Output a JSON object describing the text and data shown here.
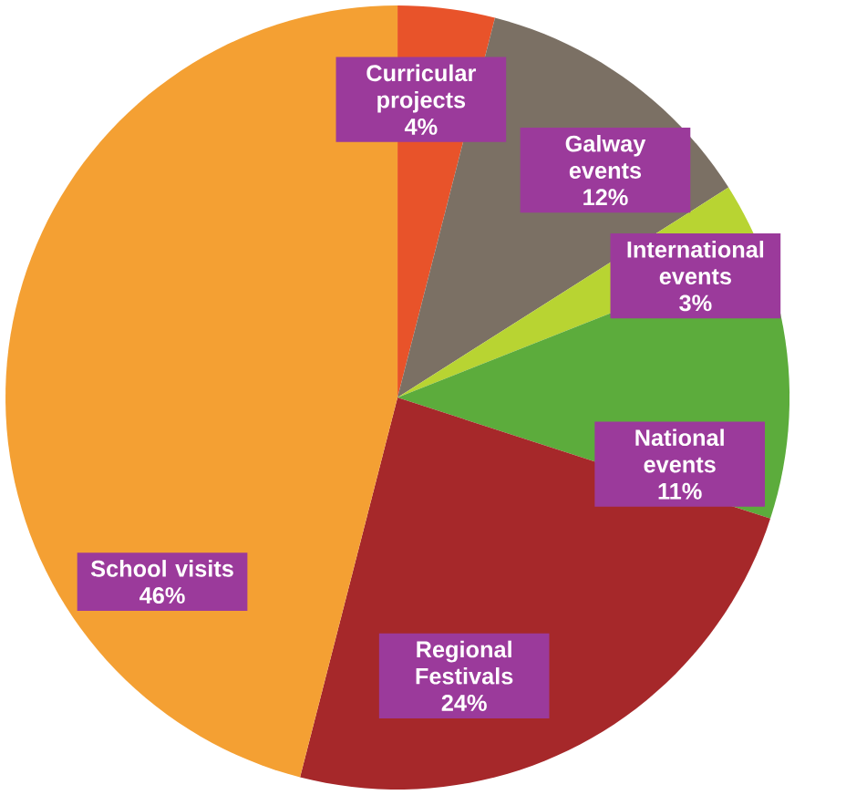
{
  "chart_data": {
    "type": "pie",
    "categories": [
      "Curricular projects",
      "Galway events",
      "International events",
      "National events",
      "Regional Festivals",
      "School visits"
    ],
    "values": [
      4,
      12,
      3,
      11,
      24,
      46
    ],
    "value_labels": [
      "4%",
      "12%",
      "3%",
      "11%",
      "24%",
      "46%"
    ],
    "colors": [
      "#e8532a",
      "#7b7064",
      "#b8d432",
      "#5cac3c",
      "#a6282a",
      "#f4a033"
    ]
  }
}
